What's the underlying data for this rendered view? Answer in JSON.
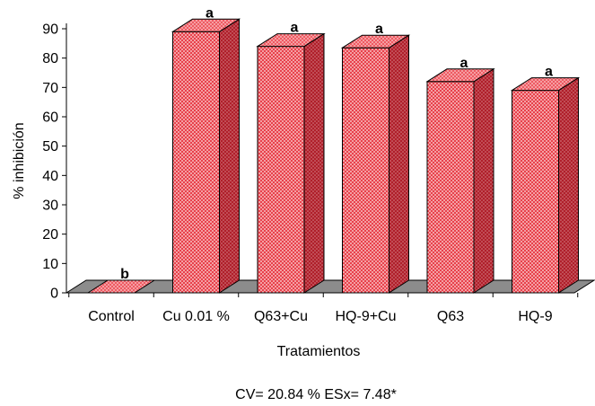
{
  "chart_data": {
    "type": "bar",
    "style": "3d",
    "categories": [
      "Control",
      "Cu 0.01 %",
      "Q63+Cu",
      "HQ-9+Cu",
      "Q63",
      "HQ-9"
    ],
    "values": [
      0,
      89,
      84,
      83.5,
      72,
      69
    ],
    "significance": [
      "b",
      "a",
      "a",
      "a",
      "a",
      "a"
    ],
    "xlabel": "Tratamientos",
    "ylabel": "% inhibición",
    "ylim": [
      0,
      90
    ],
    "yticks": [
      0,
      10,
      20,
      30,
      40,
      50,
      60,
      70,
      80,
      90
    ],
    "grid": false,
    "legend": "none",
    "footnote": "CV= 20.84 % ESx= 7.48*",
    "colors": {
      "bar_front": "#e8414b",
      "bar_top": "#ee5a62",
      "bar_side": "#b01f2a",
      "bar_pattern_dot": "#ffffff",
      "floor": "#8c8c8c"
    }
  }
}
